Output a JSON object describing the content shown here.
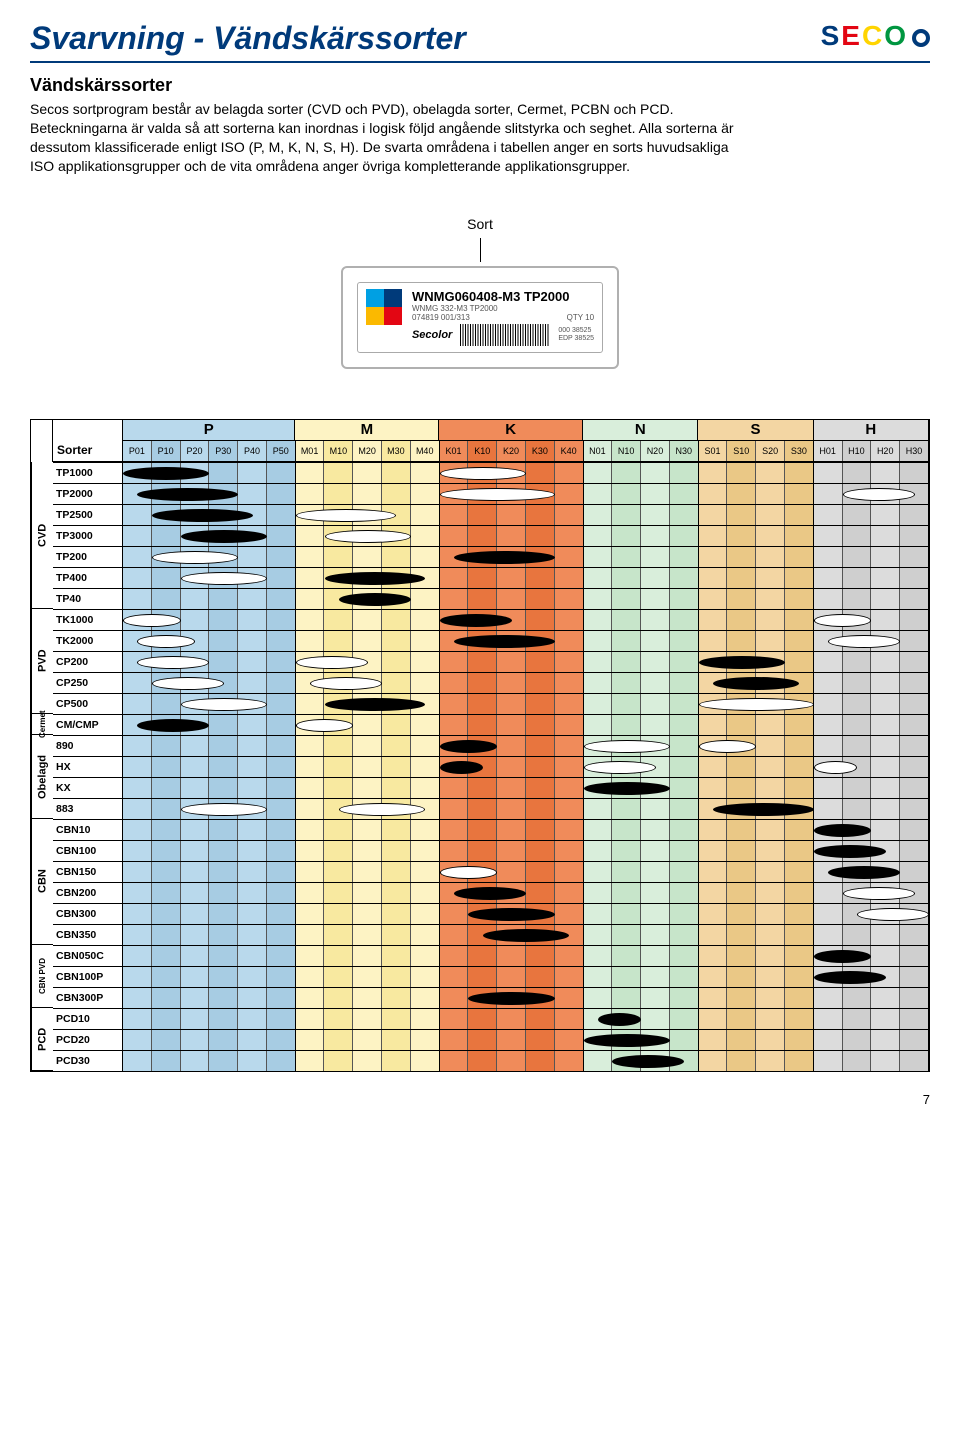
{
  "page_title": "Svarvning - Vändskärssorter",
  "brand": "SECO",
  "subtitle": "Vändskärssorter",
  "intro": "Secos sortprogram består av belagda sorter (CVD och PVD), obelagda sorter, Cermet, PCBN och PCD. Beteckningarna är valda så att sorterna kan inordnas i logisk följd angående slitstyrka och seghet. Alla sorterna är dessutom klassificerade enligt ISO (P, M, K, N, S, H). De svarta områdena i tabellen anger en sorts huvudsakliga ISO applikationsgrupper och de vita områdena anger övriga kompletterande applikationsgrupper.",
  "sort_label": "Sort",
  "label": {
    "main": "WNMG060408-M3 TP2000",
    "sub1": "WNMG 332-M3 TP2000",
    "sub2": "074819 001/313",
    "qty": "QTY 10",
    "edp1": "000 38525",
    "edp2": "EDP 38525",
    "secolor": "Secolor"
  },
  "corner": "Sorter",
  "groups": [
    {
      "name": "P",
      "cols": [
        "P01",
        "P10",
        "P20",
        "P30",
        "P40",
        "P50"
      ],
      "bg": "#b9d9ec",
      "bg2": "#a7cce3"
    },
    {
      "name": "M",
      "cols": [
        "M01",
        "M10",
        "M20",
        "M30",
        "M40"
      ],
      "bg": "#fdf3c4",
      "bg2": "#f8e9a0"
    },
    {
      "name": "K",
      "cols": [
        "K01",
        "K10",
        "K20",
        "K30",
        "K40"
      ],
      "bg": "#f08b5a",
      "bg2": "#e8753e"
    },
    {
      "name": "N",
      "cols": [
        "N01",
        "N10",
        "N20",
        "N30"
      ],
      "bg": "#d9eedb",
      "bg2": "#c7e5ca"
    },
    {
      "name": "S",
      "cols": [
        "S01",
        "S10",
        "S20",
        "S30"
      ],
      "bg": "#f3d6a3",
      "bg2": "#eac886"
    },
    {
      "name": "H",
      "cols": [
        "H01",
        "H10",
        "H20",
        "H30"
      ],
      "bg": "#dcdcdc",
      "bg2": "#cfcfcf"
    }
  ],
  "vgroups": [
    {
      "name": "CVD",
      "span": 7
    },
    {
      "name": "PVD",
      "span": 5
    },
    {
      "name": "Cermet",
      "span": 1,
      "small": true
    },
    {
      "name": "Obelagd",
      "span": 4
    },
    {
      "name": "CBN",
      "span": 6
    },
    {
      "name": "CBN PVD",
      "span": 3,
      "small": true
    },
    {
      "name": "PCD",
      "span": 3
    }
  ],
  "total_cols": 28,
  "rows": [
    {
      "label": "TP1000",
      "loz": [
        {
          "s": 0,
          "e": 3,
          "f": "b"
        },
        {
          "s": 11,
          "e": 14,
          "f": "w"
        }
      ]
    },
    {
      "label": "TP2000",
      "loz": [
        {
          "s": 0.5,
          "e": 4,
          "f": "b"
        },
        {
          "s": 11,
          "e": 15,
          "f": "w"
        },
        {
          "s": 25,
          "e": 27.5,
          "f": "w"
        }
      ]
    },
    {
      "label": "TP2500",
      "loz": [
        {
          "s": 1,
          "e": 4.5,
          "f": "b"
        },
        {
          "s": 6,
          "e": 9.5,
          "f": "w"
        }
      ]
    },
    {
      "label": "TP3000",
      "loz": [
        {
          "s": 2,
          "e": 5,
          "f": "b"
        },
        {
          "s": 7,
          "e": 10,
          "f": "w"
        }
      ]
    },
    {
      "label": "TP200",
      "loz": [
        {
          "s": 1,
          "e": 4,
          "f": "w"
        },
        {
          "s": 11.5,
          "e": 15,
          "f": "b"
        }
      ]
    },
    {
      "label": "TP400",
      "loz": [
        {
          "s": 2,
          "e": 5,
          "f": "w"
        },
        {
          "s": 7,
          "e": 10.5,
          "f": "b"
        }
      ]
    },
    {
      "label": "TP40",
      "loz": [
        {
          "s": 7.5,
          "e": 10,
          "f": "b"
        }
      ]
    },
    {
      "label": "TK1000",
      "loz": [
        {
          "s": 0,
          "e": 2,
          "f": "w"
        },
        {
          "s": 11,
          "e": 13.5,
          "f": "b"
        },
        {
          "s": 24,
          "e": 26,
          "f": "w"
        }
      ]
    },
    {
      "label": "TK2000",
      "loz": [
        {
          "s": 0.5,
          "e": 2.5,
          "f": "w"
        },
        {
          "s": 11.5,
          "e": 15,
          "f": "b"
        },
        {
          "s": 24.5,
          "e": 27,
          "f": "w"
        }
      ]
    },
    {
      "label": "CP200",
      "loz": [
        {
          "s": 0.5,
          "e": 3,
          "f": "w"
        },
        {
          "s": 6,
          "e": 8.5,
          "f": "w"
        },
        {
          "s": 20,
          "e": 23,
          "f": "b"
        }
      ]
    },
    {
      "label": "CP250",
      "loz": [
        {
          "s": 1,
          "e": 3.5,
          "f": "w"
        },
        {
          "s": 6.5,
          "e": 9,
          "f": "w"
        },
        {
          "s": 20.5,
          "e": 23.5,
          "f": "b"
        }
      ]
    },
    {
      "label": "CP500",
      "loz": [
        {
          "s": 2,
          "e": 5,
          "f": "w"
        },
        {
          "s": 7,
          "e": 10.5,
          "f": "b"
        },
        {
          "s": 20,
          "e": 24,
          "f": "w"
        }
      ]
    },
    {
      "label": "CM/CMP",
      "loz": [
        {
          "s": 0.5,
          "e": 3,
          "f": "b"
        },
        {
          "s": 6,
          "e": 8,
          "f": "w"
        }
      ]
    },
    {
      "label": "890",
      "loz": [
        {
          "s": 11,
          "e": 13,
          "f": "b"
        },
        {
          "s": 16,
          "e": 19,
          "f": "w"
        },
        {
          "s": 20,
          "e": 22,
          "f": "w"
        }
      ]
    },
    {
      "label": "HX",
      "loz": [
        {
          "s": 11,
          "e": 12.5,
          "f": "b"
        },
        {
          "s": 16,
          "e": 18.5,
          "f": "w"
        },
        {
          "s": 24,
          "e": 25.5,
          "f": "w"
        }
      ]
    },
    {
      "label": "KX",
      "loz": [
        {
          "s": 16,
          "e": 19,
          "f": "b"
        }
      ]
    },
    {
      "label": "883",
      "loz": [
        {
          "s": 2,
          "e": 5,
          "f": "w"
        },
        {
          "s": 7.5,
          "e": 10.5,
          "f": "w"
        },
        {
          "s": 20.5,
          "e": 24,
          "f": "b"
        }
      ]
    },
    {
      "label": "CBN10",
      "loz": [
        {
          "s": 24,
          "e": 26,
          "f": "b"
        }
      ]
    },
    {
      "label": "CBN100",
      "loz": [
        {
          "s": 24,
          "e": 26.5,
          "f": "b"
        }
      ]
    },
    {
      "label": "CBN150",
      "loz": [
        {
          "s": 11,
          "e": 13,
          "f": "w"
        },
        {
          "s": 24.5,
          "e": 27,
          "f": "b"
        }
      ]
    },
    {
      "label": "CBN200",
      "loz": [
        {
          "s": 11.5,
          "e": 14,
          "f": "b"
        },
        {
          "s": 25,
          "e": 27.5,
          "f": "w"
        }
      ]
    },
    {
      "label": "CBN300",
      "loz": [
        {
          "s": 12,
          "e": 15,
          "f": "b"
        },
        {
          "s": 25.5,
          "e": 28,
          "f": "w"
        }
      ]
    },
    {
      "label": "CBN350",
      "loz": [
        {
          "s": 12.5,
          "e": 15.5,
          "f": "b"
        }
      ]
    },
    {
      "label": "CBN050C",
      "loz": [
        {
          "s": 24,
          "e": 26,
          "f": "b"
        }
      ]
    },
    {
      "label": "CBN100P",
      "loz": [
        {
          "s": 24,
          "e": 26.5,
          "f": "b"
        }
      ]
    },
    {
      "label": "CBN300P",
      "loz": [
        {
          "s": 12,
          "e": 15,
          "f": "b"
        }
      ]
    },
    {
      "label": "PCD10",
      "loz": [
        {
          "s": 16.5,
          "e": 18,
          "f": "b"
        }
      ]
    },
    {
      "label": "PCD20",
      "loz": [
        {
          "s": 16,
          "e": 19,
          "f": "b"
        }
      ]
    },
    {
      "label": "PCD30",
      "loz": [
        {
          "s": 17,
          "e": 19.5,
          "f": "b"
        }
      ]
    }
  ],
  "page_num": "7"
}
